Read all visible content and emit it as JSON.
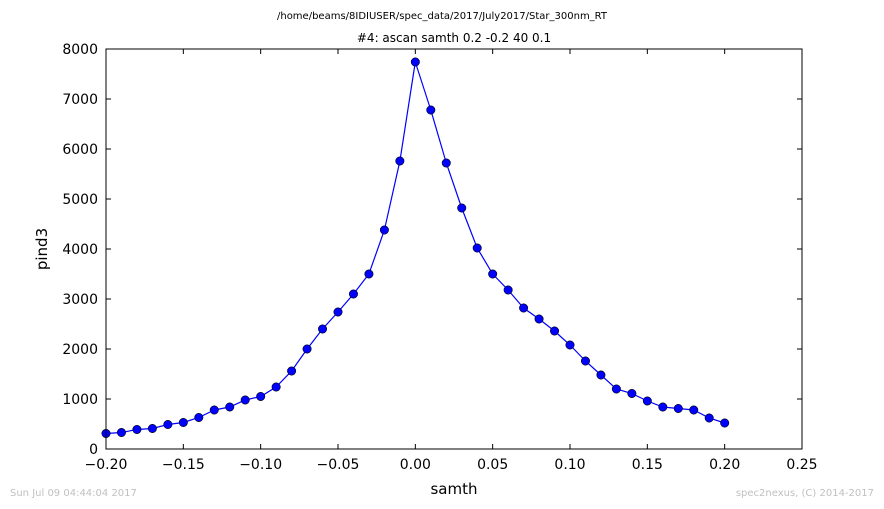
{
  "chart_data": {
    "type": "line",
    "supertitle": "/home/beams/8IDIUSER/spec_data/2017/July2017/Star_300nm_RT",
    "title": "#4: ascan  samth 0.2 -0.2  40 0.1",
    "xlabel": "samth",
    "ylabel": "pind3",
    "xlim": [
      -0.2,
      0.25
    ],
    "ylim": [
      0,
      8000
    ],
    "xticks": [
      "−0.20",
      "−0.15",
      "−0.10",
      "−0.05",
      "0.00",
      "0.05",
      "0.10",
      "0.15",
      "0.20",
      "0.25"
    ],
    "yticks": [
      "0",
      "1000",
      "2000",
      "3000",
      "4000",
      "5000",
      "6000",
      "7000",
      "8000"
    ],
    "grid": false,
    "line_color": "#0000ff",
    "marker": "circle",
    "x": [
      -0.2,
      -0.19,
      -0.18,
      -0.17,
      -0.16,
      -0.15,
      -0.14,
      -0.13,
      -0.12,
      -0.11,
      -0.1,
      -0.09,
      -0.08,
      -0.07,
      -0.06,
      -0.05,
      -0.04,
      -0.03,
      -0.02,
      -0.01,
      0.0,
      0.01,
      0.02,
      0.03,
      0.04,
      0.05,
      0.06,
      0.07,
      0.08,
      0.09,
      0.1,
      0.11,
      0.12,
      0.13,
      0.14,
      0.15,
      0.16,
      0.17,
      0.18,
      0.19,
      0.2
    ],
    "y": [
      310,
      330,
      390,
      410,
      490,
      530,
      630,
      780,
      840,
      980,
      1050,
      1240,
      1560,
      2000,
      2400,
      2740,
      3100,
      3500,
      4380,
      5760,
      7740,
      6780,
      5720,
      4820,
      4020,
      3500,
      3180,
      2820,
      2600,
      2360,
      2080,
      1760,
      1480,
      1200,
      1110,
      960,
      840,
      810,
      780,
      620,
      520
    ]
  },
  "footer": {
    "timestamp": "Sun Jul 09 04:44:04 2017",
    "credit": "spec2nexus, (C) 2014-2017"
  }
}
